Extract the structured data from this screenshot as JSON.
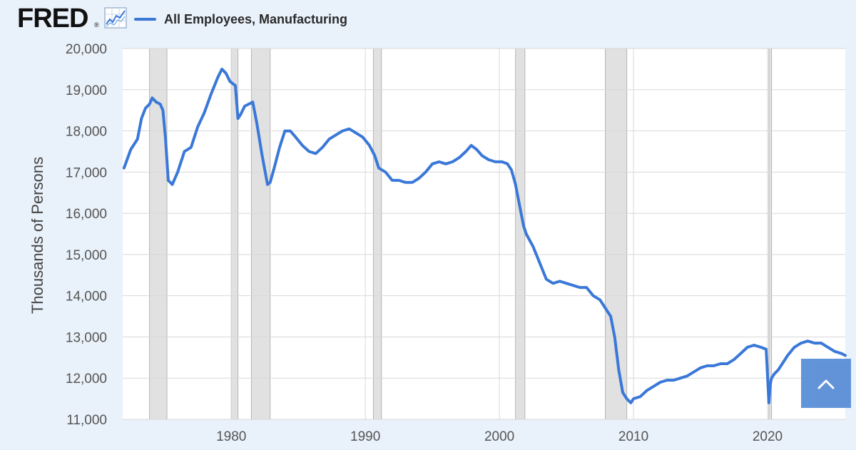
{
  "header": {
    "logo_text": "FRED",
    "logo_reg": "®",
    "logo_icon": "line-chart-icon"
  },
  "legend": {
    "series_label": "All Employees, Manufacturing",
    "color": "#3a78d8"
  },
  "scroll_top_button": {
    "icon": "chevron-up-icon",
    "color": "#5a8ed8"
  },
  "chart_data": {
    "type": "line",
    "title": "",
    "xlabel": "",
    "ylabel": "Thousands of Persons",
    "xlim": [
      1971.9,
      2025.8
    ],
    "ylim": [
      11000,
      20000
    ],
    "x_ticks": [
      1980,
      1990,
      2000,
      2010,
      2020
    ],
    "y_ticks": [
      11000,
      12000,
      13000,
      14000,
      15000,
      16000,
      17000,
      18000,
      19000,
      20000
    ],
    "y_tick_labels": [
      "11,000",
      "12,000",
      "13,000",
      "14,000",
      "15,000",
      "16,000",
      "17,000",
      "18,000",
      "19,000",
      "20,000"
    ],
    "grid": true,
    "legend_position": "top-left",
    "recessions": [
      [
        1973.9,
        1975.2
      ],
      [
        1980.0,
        1980.5
      ],
      [
        1981.5,
        1982.9
      ],
      [
        1990.6,
        1991.2
      ],
      [
        2001.2,
        2001.9
      ],
      [
        2007.9,
        2009.5
      ],
      [
        2020.1,
        2020.3
      ]
    ],
    "series": [
      {
        "name": "All Employees, Manufacturing",
        "color": "#3a78d8",
        "x": [
          1972.0,
          1972.5,
          1973.0,
          1973.3,
          1973.6,
          1973.9,
          1974.1,
          1974.4,
          1974.7,
          1974.9,
          1975.1,
          1975.3,
          1975.6,
          1976.0,
          1976.5,
          1977.0,
          1977.5,
          1978.0,
          1978.5,
          1979.0,
          1979.3,
          1979.6,
          1979.9,
          1980.3,
          1980.5,
          1980.7,
          1981.0,
          1981.3,
          1981.6,
          1981.9,
          1982.3,
          1982.7,
          1982.9,
          1983.2,
          1983.6,
          1984.0,
          1984.4,
          1984.8,
          1985.3,
          1985.8,
          1986.3,
          1986.8,
          1987.3,
          1987.8,
          1988.3,
          1988.8,
          1989.3,
          1989.8,
          1990.3,
          1990.7,
          1991.0,
          1991.5,
          1992.0,
          1992.5,
          1993.0,
          1993.5,
          1994.0,
          1994.5,
          1995.0,
          1995.5,
          1996.0,
          1996.5,
          1997.0,
          1997.5,
          1997.9,
          1998.3,
          1998.7,
          1999.2,
          1999.7,
          2000.2,
          2000.6,
          2000.9,
          2001.2,
          2001.5,
          2001.8,
          2002.0,
          2002.5,
          2003.0,
          2003.5,
          2004.0,
          2004.5,
          2005.0,
          2005.5,
          2006.0,
          2006.5,
          2007.0,
          2007.5,
          2007.9,
          2008.3,
          2008.6,
          2008.9,
          2009.2,
          2009.5,
          2009.8,
          2010.0,
          2010.5,
          2011.0,
          2011.5,
          2012.0,
          2012.5,
          2013.0,
          2013.5,
          2014.0,
          2014.5,
          2015.0,
          2015.5,
          2016.0,
          2016.5,
          2017.0,
          2017.5,
          2018.0,
          2018.5,
          2019.0,
          2019.5,
          2019.9,
          2020.1,
          2020.2,
          2020.3,
          2020.5,
          2020.8,
          2021.0,
          2021.5,
          2022.0,
          2022.5,
          2023.0,
          2023.5,
          2024.0,
          2024.5,
          2025.0,
          2025.5,
          2025.8
        ],
        "y": [
          17100,
          17550,
          17800,
          18300,
          18550,
          18650,
          18800,
          18700,
          18650,
          18500,
          17800,
          16800,
          16700,
          17000,
          17500,
          17600,
          18100,
          18450,
          18900,
          19300,
          19500,
          19400,
          19200,
          19100,
          18300,
          18400,
          18600,
          18650,
          18700,
          18200,
          17400,
          16700,
          16750,
          17100,
          17600,
          18000,
          18000,
          17850,
          17650,
          17500,
          17450,
          17600,
          17800,
          17900,
          18000,
          18050,
          17950,
          17850,
          17650,
          17400,
          17100,
          17000,
          16800,
          16800,
          16750,
          16750,
          16850,
          17000,
          17200,
          17250,
          17200,
          17250,
          17350,
          17500,
          17650,
          17550,
          17400,
          17300,
          17250,
          17250,
          17200,
          17050,
          16700,
          16200,
          15700,
          15500,
          15200,
          14800,
          14400,
          14300,
          14350,
          14300,
          14250,
          14200,
          14200,
          14000,
          13900,
          13700,
          13500,
          13000,
          12200,
          11650,
          11500,
          11400,
          11500,
          11550,
          11700,
          11800,
          11900,
          11950,
          11950,
          12000,
          12050,
          12150,
          12250,
          12300,
          12300,
          12350,
          12350,
          12450,
          12600,
          12750,
          12800,
          12750,
          12700,
          11400,
          11850,
          12000,
          12100,
          12200,
          12300,
          12550,
          12750,
          12850,
          12900,
          12850,
          12850,
          12750,
          12650,
          12600,
          12550
        ]
      }
    ]
  }
}
